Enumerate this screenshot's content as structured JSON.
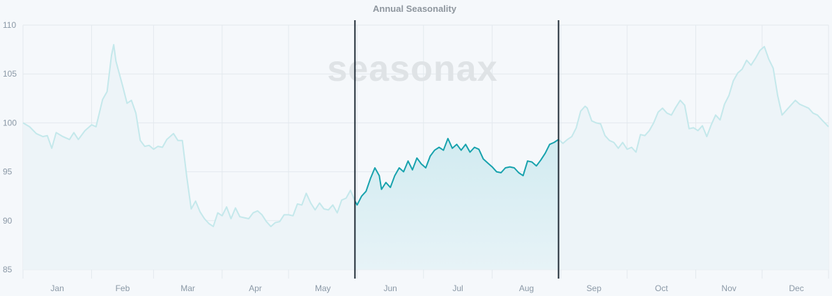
{
  "chart_data": {
    "type": "line",
    "title": "Annual Seasonality",
    "xlabel": "",
    "ylabel": "",
    "ylim": [
      85,
      110
    ],
    "y_ticks": [
      85,
      90,
      95,
      100,
      105,
      110
    ],
    "grid": true,
    "months": [
      "Jan",
      "Feb",
      "Mar",
      "Apr",
      "May",
      "Jun",
      "Jul",
      "Aug",
      "Sep",
      "Oct",
      "Nov",
      "Dec"
    ],
    "highlight_range": {
      "start_day": 151,
      "end_day": 243
    },
    "series": [
      {
        "points": [
          [
            1,
            100.0
          ],
          [
            4,
            99.6
          ],
          [
            7,
            98.9
          ],
          [
            10,
            98.6
          ],
          [
            12,
            98.7
          ],
          [
            14,
            97.4
          ],
          [
            16,
            99.0
          ],
          [
            19,
            98.6
          ],
          [
            22,
            98.3
          ],
          [
            24,
            99.0
          ],
          [
            26,
            98.3
          ],
          [
            29,
            99.2
          ],
          [
            32,
            99.8
          ],
          [
            34,
            99.6
          ],
          [
            37,
            102.4
          ],
          [
            39,
            103.2
          ],
          [
            41,
            106.9
          ],
          [
            42,
            108.0
          ],
          [
            43,
            106.3
          ],
          [
            46,
            103.8
          ],
          [
            48,
            102.0
          ],
          [
            50,
            102.3
          ],
          [
            52,
            101.0
          ],
          [
            54,
            98.2
          ],
          [
            56,
            97.6
          ],
          [
            58,
            97.7
          ],
          [
            60,
            97.3
          ],
          [
            62,
            97.6
          ],
          [
            64,
            97.5
          ],
          [
            66,
            98.3
          ],
          [
            69,
            98.9
          ],
          [
            71,
            98.2
          ],
          [
            73,
            98.2
          ],
          [
            75,
            94.5
          ],
          [
            77,
            91.2
          ],
          [
            79,
            92.0
          ],
          [
            81,
            90.9
          ],
          [
            83,
            90.2
          ],
          [
            85,
            89.7
          ],
          [
            87,
            89.4
          ],
          [
            89,
            90.8
          ],
          [
            91,
            90.5
          ],
          [
            93,
            91.4
          ],
          [
            95,
            90.2
          ],
          [
            97,
            91.3
          ],
          [
            99,
            90.4
          ],
          [
            101,
            90.3
          ],
          [
            103,
            90.2
          ],
          [
            105,
            90.8
          ],
          [
            107,
            91.0
          ],
          [
            109,
            90.6
          ],
          [
            111,
            89.9
          ],
          [
            113,
            89.4
          ],
          [
            115,
            89.8
          ],
          [
            117,
            89.9
          ],
          [
            119,
            90.6
          ],
          [
            121,
            90.6
          ],
          [
            123,
            90.5
          ],
          [
            125,
            91.7
          ],
          [
            127,
            91.6
          ],
          [
            129,
            92.8
          ],
          [
            131,
            91.8
          ],
          [
            133,
            91.1
          ],
          [
            135,
            91.8
          ],
          [
            137,
            91.2
          ],
          [
            139,
            91.1
          ],
          [
            141,
            91.6
          ],
          [
            143,
            90.8
          ],
          [
            145,
            92.1
          ],
          [
            147,
            92.3
          ],
          [
            149,
            93.1
          ],
          [
            151,
            92.0
          ],
          [
            152,
            91.6
          ],
          [
            154,
            92.5
          ],
          [
            156,
            93.0
          ],
          [
            158,
            94.3
          ],
          [
            160,
            95.4
          ],
          [
            162,
            94.6
          ],
          [
            163,
            93.2
          ],
          [
            165,
            93.9
          ],
          [
            167,
            93.4
          ],
          [
            169,
            94.6
          ],
          [
            171,
            95.4
          ],
          [
            173,
            95.0
          ],
          [
            175,
            96.1
          ],
          [
            177,
            95.2
          ],
          [
            179,
            96.4
          ],
          [
            181,
            95.8
          ],
          [
            183,
            95.4
          ],
          [
            185,
            96.6
          ],
          [
            187,
            97.2
          ],
          [
            189,
            97.5
          ],
          [
            191,
            97.2
          ],
          [
            193,
            98.4
          ],
          [
            195,
            97.4
          ],
          [
            197,
            97.8
          ],
          [
            199,
            97.2
          ],
          [
            201,
            97.8
          ],
          [
            203,
            97.0
          ],
          [
            205,
            97.5
          ],
          [
            207,
            97.3
          ],
          [
            209,
            96.3
          ],
          [
            211,
            95.9
          ],
          [
            213,
            95.5
          ],
          [
            215,
            95.0
          ],
          [
            217,
            94.9
          ],
          [
            219,
            95.4
          ],
          [
            221,
            95.5
          ],
          [
            223,
            95.4
          ],
          [
            225,
            94.9
          ],
          [
            227,
            94.6
          ],
          [
            229,
            96.1
          ],
          [
            231,
            96.0
          ],
          [
            233,
            95.6
          ],
          [
            235,
            96.2
          ],
          [
            237,
            96.9
          ],
          [
            239,
            97.8
          ],
          [
            241,
            98.0
          ],
          [
            243,
            98.3
          ],
          [
            245,
            97.9
          ],
          [
            247,
            98.3
          ],
          [
            249,
            98.6
          ],
          [
            251,
            99.5
          ],
          [
            253,
            101.2
          ],
          [
            255,
            101.7
          ],
          [
            256,
            101.5
          ],
          [
            258,
            100.2
          ],
          [
            260,
            100.0
          ],
          [
            262,
            99.9
          ],
          [
            264,
            98.7
          ],
          [
            266,
            98.2
          ],
          [
            268,
            98.0
          ],
          [
            270,
            97.4
          ],
          [
            272,
            98.0
          ],
          [
            274,
            97.3
          ],
          [
            276,
            97.5
          ],
          [
            278,
            97.0
          ],
          [
            280,
            98.8
          ],
          [
            282,
            98.7
          ],
          [
            284,
            99.2
          ],
          [
            286,
            100.0
          ],
          [
            288,
            101.1
          ],
          [
            290,
            101.5
          ],
          [
            292,
            101.0
          ],
          [
            294,
            100.8
          ],
          [
            296,
            101.6
          ],
          [
            298,
            102.3
          ],
          [
            300,
            101.8
          ],
          [
            302,
            99.4
          ],
          [
            304,
            99.5
          ],
          [
            306,
            99.2
          ],
          [
            308,
            99.7
          ],
          [
            310,
            98.6
          ],
          [
            312,
            99.8
          ],
          [
            314,
            100.8
          ],
          [
            316,
            100.3
          ],
          [
            318,
            101.9
          ],
          [
            320,
            102.8
          ],
          [
            322,
            104.3
          ],
          [
            324,
            105.1
          ],
          [
            326,
            105.5
          ],
          [
            328,
            106.4
          ],
          [
            330,
            105.9
          ],
          [
            332,
            106.6
          ],
          [
            334,
            107.4
          ],
          [
            336,
            107.8
          ],
          [
            338,
            106.5
          ],
          [
            340,
            105.6
          ],
          [
            342,
            102.8
          ],
          [
            344,
            100.8
          ],
          [
            346,
            101.3
          ],
          [
            348,
            101.8
          ],
          [
            350,
            102.3
          ],
          [
            352,
            101.9
          ],
          [
            354,
            101.7
          ],
          [
            356,
            101.5
          ],
          [
            358,
            101.0
          ],
          [
            360,
            100.8
          ],
          [
            362,
            100.3
          ],
          [
            365,
            99.6
          ]
        ]
      }
    ],
    "colors": {
      "highlight_line": "#17a2ad",
      "faded_line": "#c4e8eb",
      "highlight_fill_top": "#c2e5ec",
      "highlight_fill_bottom": "#e7f3f7",
      "faded_fill": "#edf4f8",
      "divider": "#1f2b36",
      "grid": "#e3e9ee",
      "background": "#f5f8fb"
    }
  },
  "watermark": "seasonax"
}
